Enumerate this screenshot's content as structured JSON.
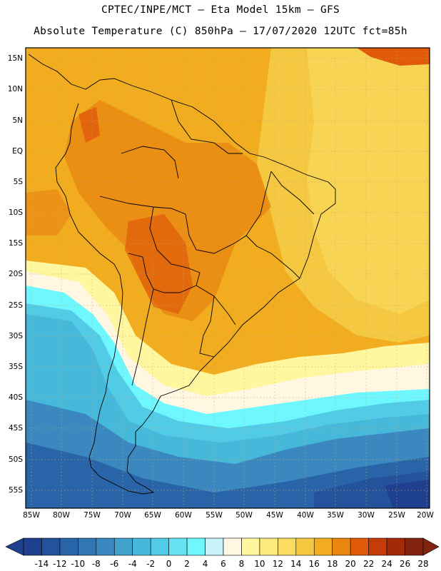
{
  "header": {
    "line1": "CPTEC/INPE/MCT –  Eta Model 15km – GFS",
    "line2": "Absolute Temperature (C) 850hPa – 17/07/2020 12UTC fct=85h"
  },
  "map": {
    "lat_labels": [
      "15N",
      "10N",
      "5N",
      "EQ",
      "5S",
      "10S",
      "15S",
      "20S",
      "25S",
      "30S",
      "35S",
      "40S",
      "45S",
      "50S",
      "55S"
    ],
    "lon_labels": [
      "85W",
      "80W",
      "75W",
      "70W",
      "65W",
      "60W",
      "55W",
      "50W",
      "45W",
      "40W",
      "35W",
      "30W",
      "25W",
      "20W"
    ]
  },
  "colorbar": {
    "labels": [
      "-14",
      "-12",
      "-10",
      "-8",
      "-6",
      "-4",
      "-2",
      "0",
      "2",
      "4",
      "6",
      "8",
      "10",
      "12",
      "14",
      "16",
      "18",
      "20",
      "22",
      "24",
      "26",
      "28"
    ],
    "colors": [
      "#1f3f8f",
      "#24539b",
      "#2a64a8",
      "#3276b3",
      "#3a88bf",
      "#41a0cc",
      "#46b8da",
      "#52cbe6",
      "#66e2f2",
      "#6ff7ff",
      "#c8f3fb",
      "#fff7e2",
      "#fff7a0",
      "#fdea7e",
      "#f9dc60",
      "#f5c842",
      "#f1ad1f",
      "#e98612",
      "#e05a0a",
      "#c43c07",
      "#a32a06",
      "#822310"
    ]
  }
}
